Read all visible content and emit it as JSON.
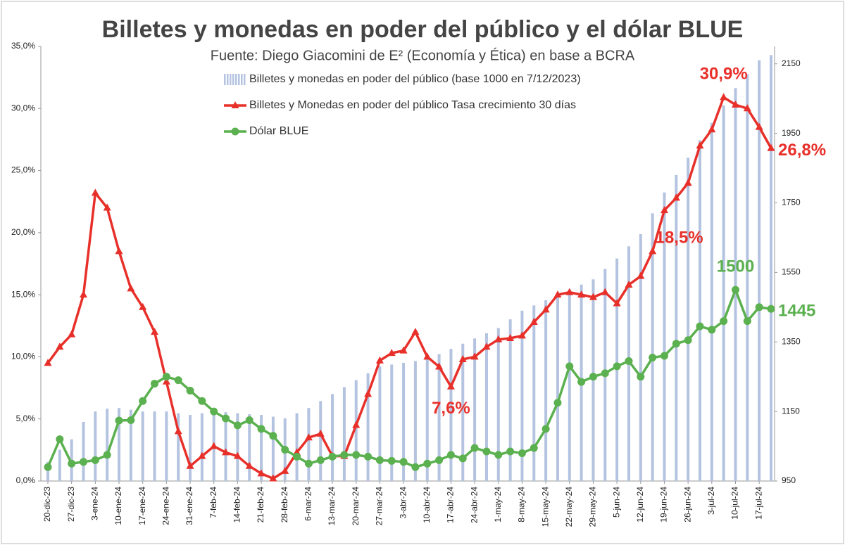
{
  "chart_data": {
    "type": "bar-line",
    "title": "Billetes y monedas en poder del público y el dólar BLUE",
    "subtitle": "Fuente: Diego Giacomini de E² (Economía y Ética) en base a BCRA",
    "categories": [
      "20-dic-23",
      null,
      "27-dic-23",
      null,
      "3-ene-24",
      null,
      "10-ene-24",
      null,
      "17-ene-24",
      null,
      "24-ene-24",
      null,
      "31-ene-24",
      null,
      "7-feb-24",
      null,
      "14-feb-24",
      null,
      "21-feb-24",
      null,
      "28-feb-24",
      null,
      "6-mar-24",
      null,
      "13-mar-24",
      null,
      "20-mar-24",
      null,
      "27-mar-24",
      null,
      "3-abr-24",
      null,
      "10-abr-24",
      null,
      "17-abr-24",
      null,
      "24-abr-24",
      null,
      "1-may-24",
      null,
      "8-may-24",
      null,
      "15-may-24",
      null,
      "22-may-24",
      null,
      "29-may-24",
      null,
      "5-jun-24",
      null,
      "12-jun-24",
      null,
      "19-jun-24",
      null,
      "26-jun-24",
      null,
      "3-jul-24",
      null,
      "10-jul-24",
      null,
      "17-jul-24",
      null
    ],
    "series": [
      {
        "name": "Billetes y monedas en poder del público (base 1000 en 7/12/2023)",
        "type": "bar",
        "axis": "y2",
        "color": "#b4c3e0",
        "values": [
          1005,
          1040,
          1070,
          1120,
          1150,
          1158,
          1160,
          1155,
          1150,
          1150,
          1150,
          1145,
          1140,
          1145,
          1150,
          1148,
          1145,
          1142,
          1140,
          1135,
          1130,
          1145,
          1160,
          1180,
          1200,
          1220,
          1240,
          1260,
          1280,
          1285,
          1290,
          1295,
          1300,
          1315,
          1330,
          1345,
          1360,
          1375,
          1390,
          1415,
          1440,
          1455,
          1470,
          1485,
          1500,
          1515,
          1530,
          1560,
          1590,
          1625,
          1660,
          1720,
          1780,
          1830,
          1880,
          1930,
          1980,
          2030,
          2080,
          2120,
          2160,
          2175
        ]
      },
      {
        "name": "Billetes y Monedas en poder del público Tasa crecimiento 30 días",
        "type": "line",
        "marker": "triangle",
        "color": "#e8302a",
        "values": [
          9.5,
          10.8,
          11.8,
          15.0,
          23.2,
          22.0,
          18.5,
          15.5,
          14.0,
          12.0,
          8.0,
          4.0,
          1.2,
          2.0,
          2.8,
          2.3,
          2.0,
          1.2,
          0.6,
          0.2,
          0.8,
          2.3,
          3.5,
          3.8,
          2.0,
          2.0,
          4.5,
          7.0,
          9.7,
          10.3,
          10.5,
          12.0,
          10.0,
          9.2,
          7.6,
          9.8,
          10.0,
          10.8,
          11.4,
          11.5,
          11.7,
          12.8,
          13.8,
          15.0,
          15.2,
          15.0,
          14.8,
          15.2,
          14.3,
          15.8,
          16.5,
          18.5,
          21.8,
          22.8,
          24.0,
          27.0,
          28.3,
          30.9,
          30.3,
          30.0,
          28.5,
          26.8
        ],
        "value_labels": [
          null,
          null,
          null,
          null,
          null,
          null,
          null,
          null,
          null,
          null,
          null,
          null,
          null,
          null,
          null,
          null,
          null,
          null,
          null,
          null,
          null,
          null,
          null,
          null,
          null,
          null,
          null,
          null,
          null,
          null,
          null,
          null,
          null,
          null,
          "7,6%",
          null,
          null,
          null,
          null,
          null,
          null,
          null,
          null,
          null,
          null,
          null,
          null,
          null,
          null,
          null,
          null,
          "18,5%",
          null,
          null,
          null,
          null,
          null,
          "30,9%",
          null,
          null,
          null,
          "26,8%"
        ]
      },
      {
        "name": "Dólar BLUE",
        "type": "line",
        "marker": "circle",
        "axis": "y2",
        "color": "#5bb04f",
        "values": [
          990,
          1070,
          1000,
          1005,
          1010,
          1025,
          1124,
          1125,
          1180,
          1230,
          1250,
          1240,
          1210,
          1180,
          1150,
          1130,
          1110,
          1125,
          1100,
          1080,
          1040,
          1020,
          1000,
          1010,
          1020,
          1025,
          1025,
          1020,
          1010,
          1008,
          1005,
          990,
          1000,
          1010,
          1025,
          1015,
          1045,
          1035,
          1025,
          1035,
          1030,
          1045,
          1100,
          1175,
          1280,
          1235,
          1250,
          1260,
          1280,
          1295,
          1250,
          1305,
          1310,
          1345,
          1355,
          1395,
          1385,
          1410,
          1500,
          1410,
          1450,
          1445
        ],
        "value_labels": [
          null,
          null,
          null,
          null,
          null,
          null,
          null,
          null,
          null,
          null,
          null,
          null,
          null,
          null,
          null,
          null,
          null,
          null,
          null,
          null,
          null,
          null,
          null,
          null,
          null,
          null,
          null,
          null,
          null,
          null,
          null,
          null,
          null,
          null,
          null,
          null,
          null,
          null,
          null,
          null,
          null,
          null,
          null,
          null,
          null,
          null,
          null,
          null,
          null,
          null,
          null,
          null,
          null,
          null,
          null,
          null,
          null,
          null,
          "1500",
          null,
          null,
          "1445"
        ]
      }
    ],
    "ylim": [
      0,
      35
    ],
    "yticks": [
      {
        "value": 0,
        "label": "0,0%"
      },
      {
        "value": 5,
        "label": "5,0%"
      },
      {
        "value": 10,
        "label": "10,0%"
      },
      {
        "value": 15,
        "label": "15,0%"
      },
      {
        "value": 20,
        "label": "20,0%"
      },
      {
        "value": 25,
        "label": "25,0%"
      },
      {
        "value": 30,
        "label": "30,0%"
      },
      {
        "value": 35,
        "label": "35,0%"
      }
    ],
    "y2lim": [
      950,
      2200
    ],
    "y2ticks": [
      950,
      1150,
      1350,
      1550,
      1750,
      1950,
      2150
    ],
    "grid": false
  }
}
